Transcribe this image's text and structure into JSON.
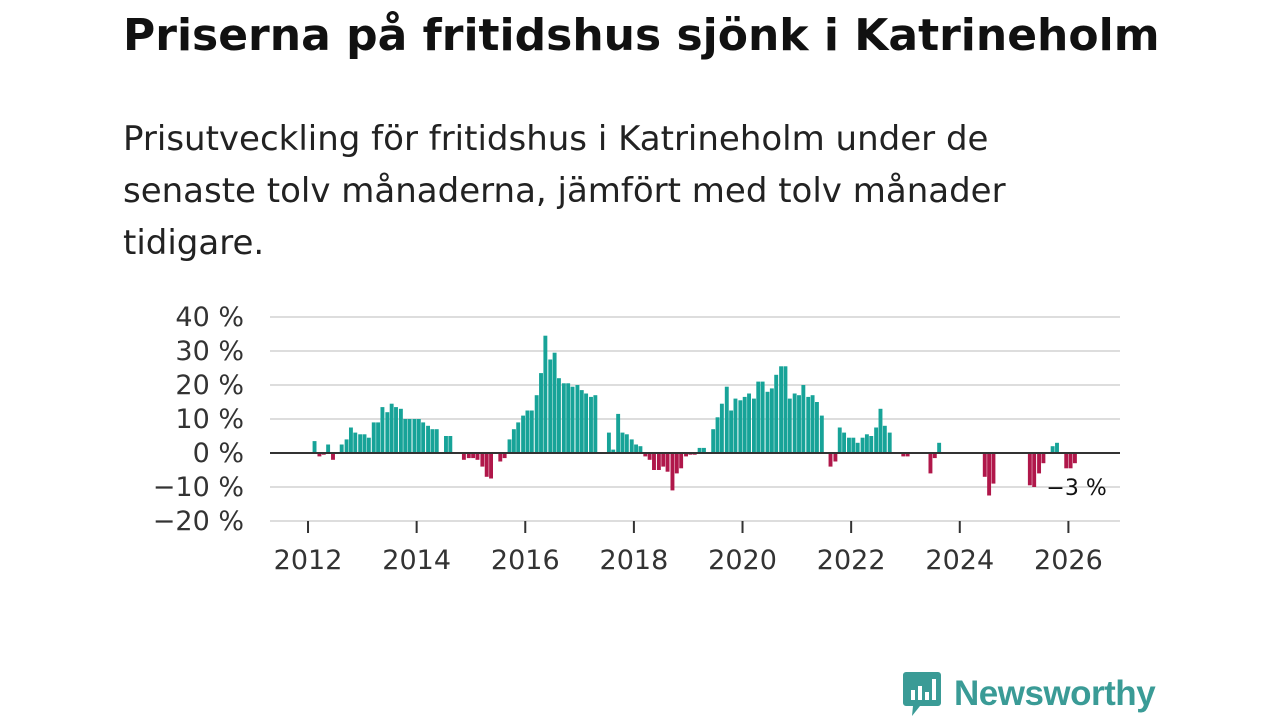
{
  "title": "Priserna på fritidshus sjönk i Katrineholm",
  "subtitle": "Prisutveckling för fritidshus i Katrineholm under de senaste tolv månaderna, jämfört med tolv månader tidigare.",
  "brand": {
    "name": "Newsworthy",
    "color": "#3a9b96",
    "icon": "bar-chart-speech-bubble-icon"
  },
  "colors": {
    "positive": "#17a398",
    "negative": "#b0174a",
    "grid": "#dddddd",
    "zero": "#333333"
  },
  "chart_data": {
    "type": "bar",
    "title": "",
    "xlabel": "",
    "ylabel": "",
    "ylim": [
      -20,
      40
    ],
    "yticks": [
      40,
      30,
      20,
      10,
      0,
      -10,
      -20
    ],
    "ytick_labels": [
      "40 %",
      "30 %",
      "20 %",
      "10 %",
      "0 %",
      "−10 %",
      "−20 %"
    ],
    "xlim": [
      2011.3,
      2026.95
    ],
    "xticks": [
      2012,
      2014,
      2016,
      2018,
      2020,
      2022,
      2024,
      2026
    ],
    "xtick_labels": [
      "2012",
      "2014",
      "2016",
      "2018",
      "2020",
      "2022",
      "2024",
      "2026"
    ],
    "annotation": {
      "text": "−3 %",
      "x": 2026.0,
      "y": -3
    },
    "series": [
      {
        "name": "Prisutveckling",
        "points": [
          [
            2012.12,
            3.5
          ],
          [
            2012.21,
            -1
          ],
          [
            2012.29,
            -0.5
          ],
          [
            2012.37,
            2.5
          ],
          [
            2012.46,
            -2
          ],
          [
            2012.62,
            2.5
          ],
          [
            2012.71,
            4
          ],
          [
            2012.79,
            7.5
          ],
          [
            2012.87,
            6
          ],
          [
            2012.96,
            5.5
          ],
          [
            2013.04,
            5.5
          ],
          [
            2013.12,
            4.5
          ],
          [
            2013.21,
            9
          ],
          [
            2013.29,
            9
          ],
          [
            2013.37,
            13.5
          ],
          [
            2013.46,
            12
          ],
          [
            2013.54,
            14.5
          ],
          [
            2013.62,
            13.5
          ],
          [
            2013.71,
            13
          ],
          [
            2013.79,
            10
          ],
          [
            2013.87,
            10
          ],
          [
            2013.96,
            10
          ],
          [
            2014.04,
            10
          ],
          [
            2014.12,
            9
          ],
          [
            2014.21,
            8
          ],
          [
            2014.29,
            7
          ],
          [
            2014.37,
            7
          ],
          [
            2014.54,
            5
          ],
          [
            2014.62,
            5
          ],
          [
            2014.87,
            -2
          ],
          [
            2014.96,
            -1.5
          ],
          [
            2015.04,
            -1.5
          ],
          [
            2015.12,
            -2
          ],
          [
            2015.21,
            -4
          ],
          [
            2015.29,
            -7
          ],
          [
            2015.37,
            -7.5
          ],
          [
            2015.54,
            -2.5
          ],
          [
            2015.62,
            -1.5
          ],
          [
            2015.71,
            4
          ],
          [
            2015.79,
            7
          ],
          [
            2015.87,
            9
          ],
          [
            2015.96,
            11
          ],
          [
            2016.04,
            12.5
          ],
          [
            2016.12,
            12.5
          ],
          [
            2016.21,
            17
          ],
          [
            2016.29,
            23.5
          ],
          [
            2016.37,
            34.5
          ],
          [
            2016.46,
            27.5
          ],
          [
            2016.54,
            29.5
          ],
          [
            2016.62,
            22
          ],
          [
            2016.71,
            20.5
          ],
          [
            2016.79,
            20.5
          ],
          [
            2016.87,
            19.5
          ],
          [
            2016.96,
            20
          ],
          [
            2017.04,
            18.5
          ],
          [
            2017.12,
            17.5
          ],
          [
            2017.21,
            16.5
          ],
          [
            2017.29,
            17
          ],
          [
            2017.54,
            6
          ],
          [
            2017.62,
            1
          ],
          [
            2017.71,
            11.5
          ],
          [
            2017.79,
            6
          ],
          [
            2017.87,
            5.5
          ],
          [
            2017.96,
            4
          ],
          [
            2018.04,
            2.5
          ],
          [
            2018.12,
            2
          ],
          [
            2018.21,
            -1
          ],
          [
            2018.29,
            -2
          ],
          [
            2018.37,
            -5
          ],
          [
            2018.46,
            -5
          ],
          [
            2018.54,
            -4
          ],
          [
            2018.62,
            -5.5
          ],
          [
            2018.71,
            -11
          ],
          [
            2018.79,
            -6
          ],
          [
            2018.87,
            -4.5
          ],
          [
            2018.96,
            -1
          ],
          [
            2019.04,
            -0.5
          ],
          [
            2019.12,
            -0.5
          ],
          [
            2019.21,
            1.5
          ],
          [
            2019.29,
            1.5
          ],
          [
            2019.46,
            7
          ],
          [
            2019.54,
            10.5
          ],
          [
            2019.62,
            14.5
          ],
          [
            2019.71,
            19.5
          ],
          [
            2019.79,
            12.5
          ],
          [
            2019.87,
            16
          ],
          [
            2019.96,
            15.5
          ],
          [
            2020.04,
            16.5
          ],
          [
            2020.12,
            17.5
          ],
          [
            2020.21,
            16
          ],
          [
            2020.29,
            21
          ],
          [
            2020.37,
            21
          ],
          [
            2020.46,
            18
          ],
          [
            2020.54,
            19
          ],
          [
            2020.62,
            23
          ],
          [
            2020.71,
            25.5
          ],
          [
            2020.79,
            25.5
          ],
          [
            2020.87,
            16
          ],
          [
            2020.96,
            17.5
          ],
          [
            2021.04,
            17
          ],
          [
            2021.12,
            20
          ],
          [
            2021.21,
            16.5
          ],
          [
            2021.29,
            17
          ],
          [
            2021.37,
            15
          ],
          [
            2021.46,
            11
          ],
          [
            2021.62,
            -4
          ],
          [
            2021.71,
            -2.5
          ],
          [
            2021.79,
            7.5
          ],
          [
            2021.87,
            6
          ],
          [
            2021.96,
            4.5
          ],
          [
            2022.04,
            4.5
          ],
          [
            2022.12,
            3
          ],
          [
            2022.21,
            4.5
          ],
          [
            2022.29,
            5.5
          ],
          [
            2022.37,
            5
          ],
          [
            2022.46,
            7.5
          ],
          [
            2022.54,
            13
          ],
          [
            2022.62,
            8
          ],
          [
            2022.71,
            6
          ],
          [
            2022.96,
            -1
          ],
          [
            2023.04,
            -1
          ],
          [
            2023.46,
            -6
          ],
          [
            2023.54,
            -1.5
          ],
          [
            2023.62,
            3
          ],
          [
            2024.46,
            -7
          ],
          [
            2024.54,
            -12.5
          ],
          [
            2024.62,
            -9
          ],
          [
            2025.29,
            -9.5
          ],
          [
            2025.37,
            -10
          ],
          [
            2025.46,
            -6
          ],
          [
            2025.54,
            -3
          ],
          [
            2025.71,
            2
          ],
          [
            2025.79,
            3
          ],
          [
            2025.96,
            -4.5
          ],
          [
            2026.04,
            -4.5
          ],
          [
            2026.12,
            -3
          ]
        ]
      }
    ]
  }
}
